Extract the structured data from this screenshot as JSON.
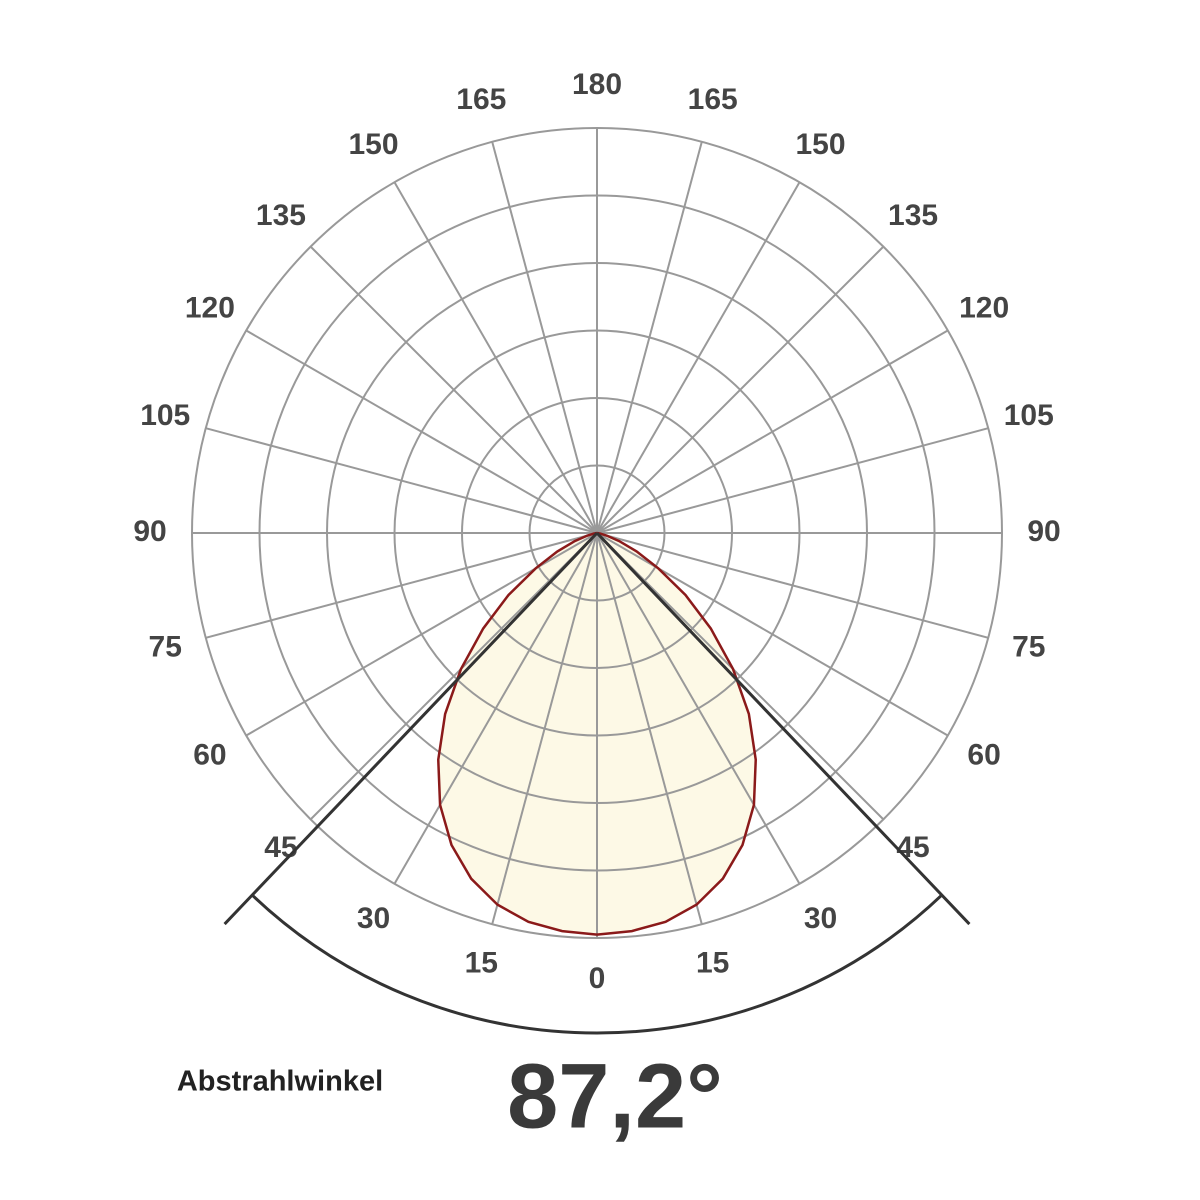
{
  "chart_data": {
    "type": "polar",
    "x": [
      0,
      5,
      10,
      15,
      20,
      25,
      30,
      35,
      40,
      45,
      50,
      55,
      60,
      65,
      70,
      75,
      80,
      85,
      90
    ],
    "values": [
      595,
      592,
      585,
      570,
      545,
      510,
      465,
      410,
      350,
      285,
      220,
      160,
      105,
      65,
      35,
      15,
      5,
      1,
      0
    ],
    "color": "#8b1a1a",
    "fill": "#fdf9e6",
    "rlim": [
      0,
      600
    ],
    "rticks": [
      100,
      200,
      300,
      400,
      500,
      600
    ],
    "xticks": [
      0,
      15,
      30,
      45,
      60,
      75,
      90,
      105,
      120,
      135,
      150,
      165,
      180
    ],
    "grid": true,
    "beam_label": "Abstrahlwinkel",
    "beam_angle": 87.2,
    "beam_angle_label": "87,2°"
  }
}
